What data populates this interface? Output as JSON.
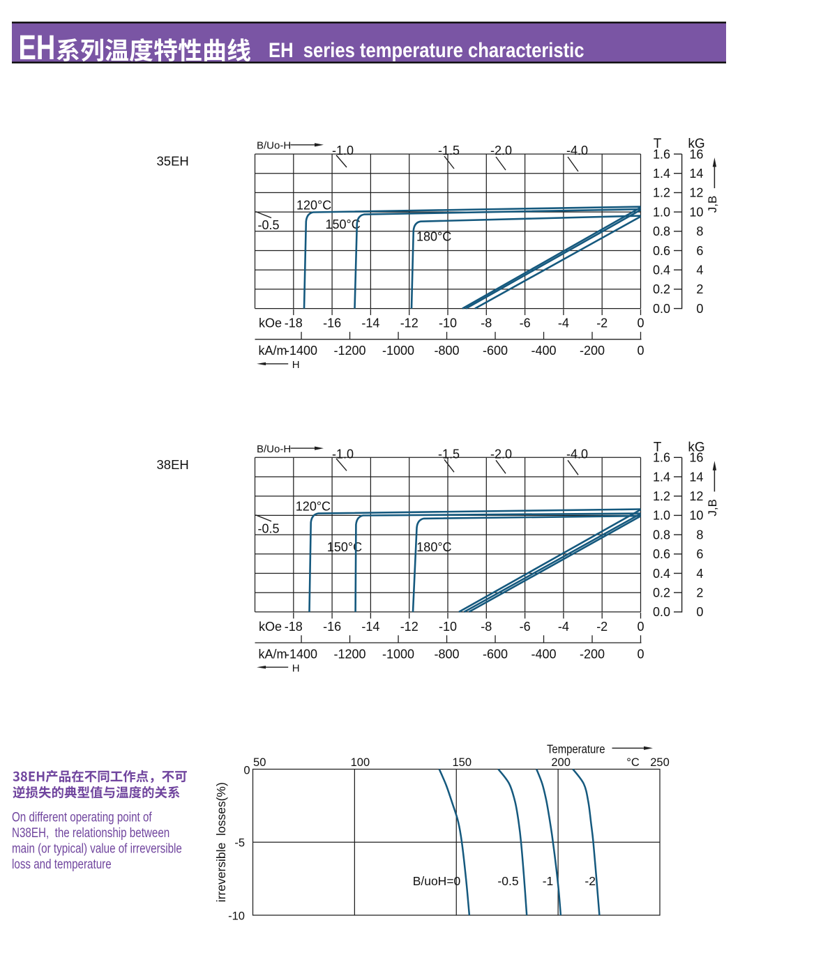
{
  "header": {
    "title_zh": "EH系列温度特性曲线",
    "title_en": "EH  series temperature characteristic",
    "bg_color": "#7a55a4",
    "edge_color": "#151515",
    "text_color": "#ffffff"
  },
  "colors": {
    "curve_blue": "#15597e",
    "grid_black": "#1f1f1f",
    "purple_text": "#70459e"
  },
  "side_note": {
    "zh_line1": "38EH产品在不同工作点，不可",
    "zh_line2": "逆损失的典型值与温度的关系",
    "en_lines": [
      "On different operating point of",
      "N38EH,  the relationship between",
      "main (or typical) value of irreversible",
      "loss and temperature"
    ]
  },
  "chart_data": [
    {
      "type": "line",
      "title": "35EH",
      "top_axis_label": "B/Uo-H",
      "x_label_primary": "kOe",
      "x_ticks_koe": [
        "-18",
        "-16",
        "-14",
        "-12",
        "-10",
        "-8",
        "-6",
        "-4",
        "-2",
        "0"
      ],
      "x_label_secondary": "kA/m",
      "x_ticks_kam": [
        "-1400",
        "-1200",
        "-1000",
        "-800",
        "-600",
        "-400",
        "-200",
        "0"
      ],
      "x_ticks_kam_values": [
        -1400,
        -1200,
        -1000,
        -800,
        -600,
        -400,
        -200,
        0
      ],
      "x_range_koe": [
        -20,
        0
      ],
      "h_arrow_label": "H",
      "y_unit_left": "T",
      "y_unit_right": "kG",
      "y_ticks_T": [
        "1.6",
        "1.4",
        "1.2",
        "1.0",
        "0.8",
        "0.6",
        "0.4",
        "0.2",
        "0.0"
      ],
      "y_ticks_kG": [
        "16",
        "14",
        "12",
        "10",
        "8",
        "6",
        "4",
        "2",
        "0"
      ],
      "y_range_T": [
        0,
        1.6
      ],
      "y_arrow_label": "J,B",
      "load_lines": [
        {
          "label": "-1.0"
        },
        {
          "label": "-1.5"
        },
        {
          "label": "-2.0"
        },
        {
          "label": "-4.0"
        },
        {
          "label": "-0.5"
        }
      ],
      "curves_j": [
        {
          "label": "120°C",
          "br": 1.054,
          "knee_h": -16.98,
          "knee_b": 0.997,
          "hcj": -17.45
        },
        {
          "label": "150°C",
          "br": 1.029,
          "knee_h": -14.34,
          "knee_b": 0.975,
          "hcj": -14.83
        },
        {
          "label": "180°C",
          "br": 0.96,
          "knee_h": -11.41,
          "knee_b": 0.902,
          "hcj": -11.88
        }
      ],
      "curves_b": [
        {
          "br": 1.047,
          "hcb": -9.24
        },
        {
          "br": 1.022,
          "hcb": -9.06
        },
        {
          "br": 0.953,
          "hcb": -8.59
        }
      ]
    },
    {
      "type": "line",
      "title": "38EH",
      "top_axis_label": "B/Uo-H",
      "x_label_primary": "kOe",
      "x_ticks_koe": [
        "-18",
        "-16",
        "-14",
        "-12",
        "-10",
        "-8",
        "-6",
        "-4",
        "-2",
        "0"
      ],
      "x_label_secondary": "kA/m",
      "x_ticks_kam": [
        "-1400",
        "-1200",
        "-1000",
        "-800",
        "-600",
        "-400",
        "-200",
        "0"
      ],
      "x_ticks_kam_values": [
        -1400,
        -1200,
        -1000,
        -800,
        -600,
        -400,
        -200,
        0
      ],
      "x_range_koe": [
        -20,
        0
      ],
      "h_arrow_label": "H",
      "y_unit_left": "T",
      "y_unit_right": "kG",
      "y_ticks_T": [
        "1.6",
        "1.4",
        "1.2",
        "1.0",
        "0.8",
        "0.6",
        "0.4",
        "0.2",
        "0.0"
      ],
      "y_ticks_kG": [
        "16",
        "14",
        "12",
        "10",
        "8",
        "6",
        "4",
        "2",
        "0"
      ],
      "y_range_T": [
        0,
        1.6
      ],
      "y_arrow_label": "J,B",
      "load_lines": [
        {
          "label": "-1.0"
        },
        {
          "label": "-1.5"
        },
        {
          "label": "-2.0"
        },
        {
          "label": "-4.0"
        },
        {
          "label": "-0.5"
        }
      ],
      "curves_j": [
        {
          "label": "120°C",
          "br": 1.064,
          "knee_h": -16.73,
          "knee_b": 1.02,
          "hcj": -17.18
        },
        {
          "label": "150°C",
          "br": 1.02,
          "knee_h": -14.39,
          "knee_b": 0.999,
          "hcj": -14.79
        },
        {
          "label": "180°C",
          "br": 0.995,
          "knee_h": -11.24,
          "knee_b": 0.9675,
          "hcj": -11.81
        }
      ],
      "curves_b": [
        {
          "br": 1.06,
          "hcb": -9.42
        },
        {
          "br": 1.017,
          "hcb": -9.15
        },
        {
          "br": 0.993,
          "hcb": -8.9
        }
      ]
    },
    {
      "type": "line",
      "x_label": "Temperature",
      "x_unit": "°C",
      "x_ticks": [
        "50",
        "100",
        "150",
        "200",
        "250"
      ],
      "x_tick_values": [
        50,
        100,
        150,
        200,
        250
      ],
      "x_range": [
        50,
        250
      ],
      "y_label": "irreversible  losses(%)",
      "y_ticks": [
        "0",
        "-5",
        "-10"
      ],
      "y_tick_values": [
        0,
        -5,
        -10
      ],
      "y_range": [
        -10,
        0
      ],
      "series": [
        {
          "name": "B/uoH=0",
          "points": [
            [
              141.6,
              0
            ],
            [
              145.0,
              -1.1
            ],
            [
              148.2,
              -2.4
            ],
            [
              150.9,
              -3.6
            ],
            [
              152.7,
              -5.0
            ],
            [
              154.8,
              -7.6
            ],
            [
              156.4,
              -10.0
            ]
          ]
        },
        {
          "name": "-0.5",
          "points": [
            [
              170.6,
              0
            ],
            [
              176.0,
              -1.0
            ],
            [
              178.9,
              -2.26
            ],
            [
              180.6,
              -3.6
            ],
            [
              181.8,
              -5.0
            ],
            [
              183.2,
              -7.3
            ],
            [
              184.6,
              -10.0
            ]
          ]
        },
        {
          "name": "-1",
          "points": [
            [
              189.4,
              0
            ],
            [
              192.2,
              -1.0
            ],
            [
              194.3,
              -2.2
            ],
            [
              196.0,
              -3.6
            ],
            [
              197.5,
              -5.0
            ],
            [
              200.0,
              -7.9
            ],
            [
              201.3,
              -10.0
            ]
          ]
        },
        {
          "name": "-2",
          "points": [
            [
              207.3,
              0
            ],
            [
              212.6,
              -1.0
            ],
            [
              214.8,
              -2.2
            ],
            [
              216.2,
              -3.7
            ],
            [
              217.3,
              -5.0
            ],
            [
              218.9,
              -7.6
            ],
            [
              220.3,
              -10.0
            ]
          ]
        }
      ]
    }
  ]
}
